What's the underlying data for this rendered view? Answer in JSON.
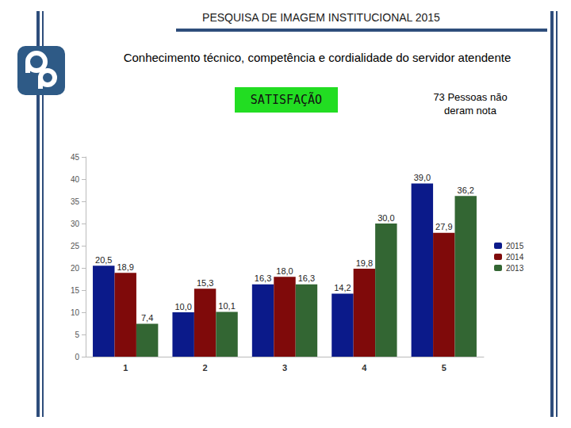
{
  "chart_data": {
    "type": "bar",
    "title": "PESQUISA DE IMAGEM INSTITUCIONAL  2015",
    "subtitle": "Conhecimento técnico, competência e cordialidade do servidor atendente",
    "annotations": [
      "SATISFAÇÃO",
      "73 Pessoas não deram nota"
    ],
    "categories": [
      "1",
      "2",
      "3",
      "4",
      "5"
    ],
    "series": [
      {
        "name": "2015",
        "color": "#0b1a8a",
        "values": [
          20.5,
          10.0,
          16.3,
          14.2,
          39.0
        ],
        "value_labels": [
          "20,5",
          "10,0",
          "16,3",
          "14,2",
          "39,0"
        ]
      },
      {
        "name": "2014",
        "color": "#7f0a0a",
        "values": [
          18.9,
          15.3,
          18.0,
          19.8,
          27.9
        ],
        "value_labels": [
          "18,9",
          "15,3",
          "18,0",
          "19,8",
          "27,9"
        ]
      },
      {
        "name": "2013",
        "color": "#336633",
        "values": [
          7.4,
          10.1,
          16.3,
          30.0,
          36.2
        ],
        "value_labels": [
          "7,4",
          "10,1",
          "16,3",
          "30,0",
          "36,2"
        ]
      }
    ],
    "ylim": [
      0,
      45
    ],
    "yticks": [
      0,
      5,
      10,
      15,
      20,
      25,
      30,
      35,
      40,
      45
    ],
    "grid": false,
    "legend": "right",
    "data_labels": true
  }
}
